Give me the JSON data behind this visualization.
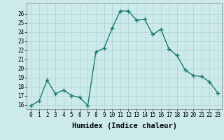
{
  "x": [
    0,
    1,
    2,
    3,
    4,
    5,
    6,
    7,
    8,
    9,
    10,
    11,
    12,
    13,
    14,
    15,
    16,
    17,
    18,
    19,
    20,
    21,
    22,
    23
  ],
  "y": [
    15.9,
    16.4,
    18.7,
    17.2,
    17.6,
    17.0,
    16.8,
    15.9,
    21.8,
    22.2,
    24.4,
    26.3,
    26.3,
    25.3,
    25.4,
    23.7,
    24.3,
    22.1,
    21.4,
    19.8,
    19.2,
    19.1,
    18.5,
    17.3
  ],
  "line_color": "#1a7a6e",
  "marker": "+",
  "marker_size": 4,
  "marker_edge_width": 1.0,
  "bg_color": "#cceaea",
  "grid_color": "#aad4d4",
  "xlabel": "Humidex (Indice chaleur)",
  "ylim": [
    15.5,
    27.2
  ],
  "xlim": [
    -0.5,
    23.5
  ],
  "yticks": [
    16,
    17,
    18,
    19,
    20,
    21,
    22,
    23,
    24,
    25,
    26
  ],
  "xticks": [
    0,
    1,
    2,
    3,
    4,
    5,
    6,
    7,
    8,
    9,
    10,
    11,
    12,
    13,
    14,
    15,
    16,
    17,
    18,
    19,
    20,
    21,
    22,
    23
  ],
  "xtick_labels": [
    "0",
    "1",
    "2",
    "3",
    "4",
    "5",
    "6",
    "7",
    "8",
    "9",
    "10",
    "11",
    "12",
    "13",
    "14",
    "15",
    "16",
    "17",
    "18",
    "19",
    "20",
    "21",
    "22",
    "23"
  ],
  "tick_fontsize": 5.5,
  "xlabel_fontsize": 7.5,
  "line_width": 1.0
}
